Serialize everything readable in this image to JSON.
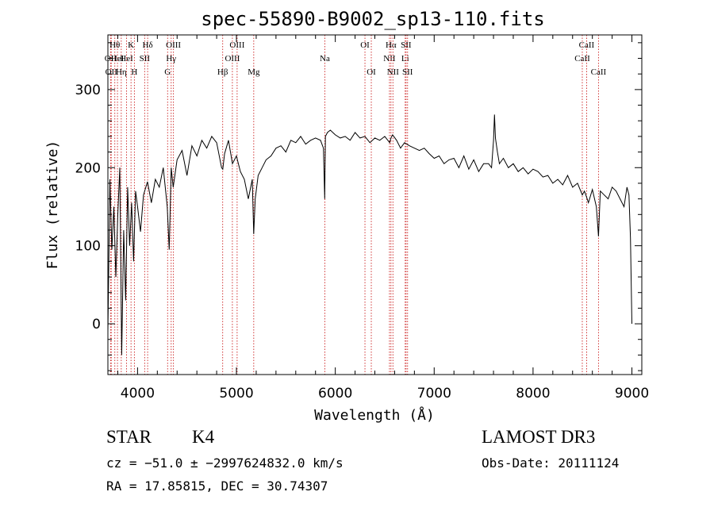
{
  "chart_data": {
    "type": "line",
    "title": "spec-55890-B9002_sp13-110.fits",
    "xlabel": "Wavelength (Å)",
    "ylabel": "Flux (relative)",
    "xlim": [
      3700,
      9100
    ],
    "ylim": [
      -65,
      370
    ],
    "xticks": [
      4000,
      5000,
      6000,
      7000,
      8000,
      9000
    ],
    "yticks": [
      0,
      100,
      200,
      300
    ],
    "series": [
      {
        "name": "spectrum",
        "x": [
          3700,
          3720,
          3740,
          3760,
          3780,
          3800,
          3820,
          3840,
          3860,
          3880,
          3900,
          3920,
          3940,
          3960,
          3980,
          4000,
          4030,
          4060,
          4100,
          4140,
          4180,
          4220,
          4260,
          4300,
          4320,
          4340,
          4360,
          4400,
          4450,
          4500,
          4550,
          4600,
          4650,
          4700,
          4750,
          4800,
          4850,
          4862,
          4880,
          4920,
          4960,
          5000,
          5040,
          5080,
          5120,
          5160,
          5175,
          5190,
          5220,
          5260,
          5300,
          5350,
          5400,
          5450,
          5500,
          5550,
          5600,
          5650,
          5700,
          5750,
          5800,
          5850,
          5880,
          5893,
          5900,
          5920,
          5950,
          6000,
          6050,
          6100,
          6150,
          6200,
          6250,
          6300,
          6350,
          6400,
          6450,
          6500,
          6550,
          6563,
          6580,
          6620,
          6660,
          6700,
          6750,
          6800,
          6850,
          6900,
          6950,
          7000,
          7050,
          7100,
          7150,
          7200,
          7250,
          7300,
          7350,
          7400,
          7450,
          7500,
          7550,
          7580,
          7600,
          7610,
          7620,
          7640,
          7660,
          7700,
          7750,
          7800,
          7850,
          7900,
          7950,
          8000,
          8050,
          8100,
          8150,
          8200,
          8250,
          8300,
          8350,
          8400,
          8450,
          8498,
          8520,
          8542,
          8560,
          8600,
          8640,
          8662,
          8680,
          8720,
          8760,
          8800,
          8840,
          8880,
          8920,
          8950,
          8970,
          8985,
          9000
        ],
        "y": [
          -10,
          185,
          95,
          150,
          60,
          140,
          200,
          -40,
          120,
          30,
          175,
          100,
          155,
          80,
          170,
          150,
          118,
          165,
          182,
          155,
          185,
          175,
          200,
          150,
          95,
          200,
          175,
          210,
          222,
          190,
          228,
          215,
          235,
          225,
          240,
          232,
          200,
          198,
          218,
          235,
          205,
          215,
          195,
          185,
          160,
          185,
          115,
          160,
          190,
          200,
          210,
          215,
          225,
          228,
          220,
          235,
          232,
          240,
          230,
          235,
          238,
          235,
          225,
          160,
          240,
          245,
          248,
          242,
          238,
          240,
          235,
          245,
          238,
          240,
          232,
          238,
          235,
          240,
          232,
          238,
          242,
          235,
          225,
          232,
          228,
          225,
          222,
          225,
          218,
          212,
          215,
          205,
          210,
          212,
          200,
          215,
          198,
          210,
          195,
          205,
          205,
          200,
          235,
          268,
          238,
          220,
          205,
          212,
          200,
          205,
          195,
          200,
          192,
          198,
          195,
          188,
          190,
          180,
          185,
          178,
          190,
          175,
          180,
          165,
          170,
          162,
          155,
          172,
          150,
          112,
          170,
          165,
          160,
          175,
          170,
          160,
          150,
          175,
          165,
          110,
          0
        ]
      }
    ],
    "line_markers": [
      {
        "wavelength": 3727,
        "label": "OII",
        "row": 2
      },
      {
        "wavelength": 3734,
        "label": "OII",
        "row": 3
      },
      {
        "wavelength": 3770,
        "label": "Hθ",
        "row": 1
      },
      {
        "wavelength": 3797,
        "label": "HeI",
        "row": 2
      },
      {
        "wavelength": 3835,
        "label": "Hη",
        "row": 3
      },
      {
        "wavelength": 3889,
        "label": "HeI",
        "row": 2
      },
      {
        "wavelength": 3934,
        "label": "K",
        "row": 1
      },
      {
        "wavelength": 3968,
        "label": "H",
        "row": 3
      },
      {
        "wavelength": 4072,
        "label": "SII",
        "row": 2
      },
      {
        "wavelength": 4102,
        "label": "Hδ",
        "row": 1
      },
      {
        "wavelength": 4304,
        "label": "G",
        "row": 3
      },
      {
        "wavelength": 4340,
        "label": "Hγ",
        "row": 2
      },
      {
        "wavelength": 4363,
        "label": "OIII",
        "row": 1
      },
      {
        "wavelength": 4861,
        "label": "Hβ",
        "row": 3
      },
      {
        "wavelength": 4959,
        "label": "OIII",
        "row": 2
      },
      {
        "wavelength": 5007,
        "label": "OIII",
        "row": 1
      },
      {
        "wavelength": 5175,
        "label": "Mg",
        "row": 3
      },
      {
        "wavelength": 5894,
        "label": "Na",
        "row": 2
      },
      {
        "wavelength": 6300,
        "label": "OI",
        "row": 1
      },
      {
        "wavelength": 6364,
        "label": "OI",
        "row": 3
      },
      {
        "wavelength": 6548,
        "label": "NII",
        "row": 2
      },
      {
        "wavelength": 6563,
        "label": "Hα",
        "row": 1
      },
      {
        "wavelength": 6583,
        "label": "NII",
        "row": 3
      },
      {
        "wavelength": 6707,
        "label": "Li",
        "row": 2
      },
      {
        "wavelength": 6716,
        "label": "SII",
        "row": 1
      },
      {
        "wavelength": 6731,
        "label": "SII",
        "row": 3
      },
      {
        "wavelength": 8498,
        "label": "CaII",
        "row": 2
      },
      {
        "wavelength": 8542,
        "label": "CaII",
        "row": 1
      },
      {
        "wavelength": 8662,
        "label": "CaII",
        "row": 3
      }
    ],
    "colors": {
      "spectrum": "#000000",
      "marker": "#cc2222",
      "axis": "#000000"
    }
  },
  "info": {
    "object_class": "STAR",
    "subclass": "K4",
    "survey": "LAMOST DR3",
    "redshift_line": "cz = −51.0 ± −2997624832.0 km/s",
    "obs_date_line": "Obs-Date: 20111124",
    "coords_line": "RA =  17.85815, DEC =  30.74307"
  }
}
